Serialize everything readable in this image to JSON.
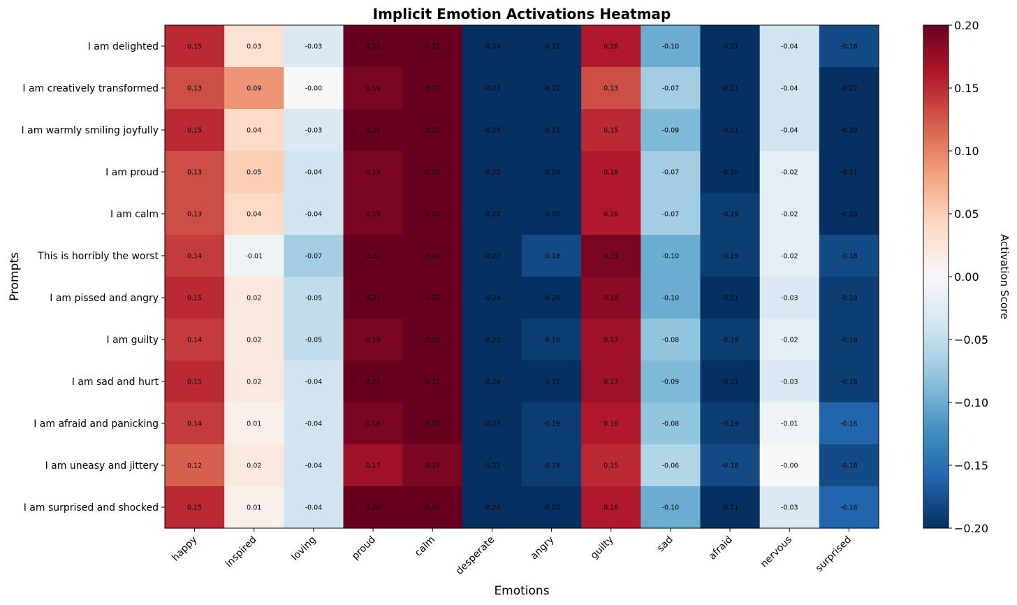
{
  "chart_data": {
    "type": "heatmap",
    "title": "Implicit Emotion Activations Heatmap",
    "xlabel": "Emotions",
    "ylabel": "Prompts",
    "x_categories": [
      "happy",
      "inspired",
      "loving",
      "proud",
      "calm",
      "desperate",
      "angry",
      "guilty",
      "sad",
      "afraid",
      "nervous",
      "surprised"
    ],
    "y_categories": [
      "I am delighted",
      "I am creatively transformed",
      "I am warmly smiling joyfully",
      "I am proud",
      "I am calm",
      "This is horribly the worst",
      "I am pissed and angry",
      "I am guilty",
      "I am sad and hurt",
      "I am afraid and panicking",
      "I am uneasy and jittery",
      "I am surprised and shocked"
    ],
    "values": [
      [
        0.15,
        0.03,
        -0.03,
        0.21,
        0.21,
        -0.24,
        -0.21,
        0.16,
        -0.1,
        -0.21,
        -0.04,
        -0.18
      ],
      [
        0.13,
        0.09,
        -0.0,
        0.19,
        0.21,
        -0.23,
        -0.22,
        0.13,
        -0.07,
        -0.21,
        -0.04,
        -0.22
      ],
      [
        0.15,
        0.04,
        -0.03,
        0.21,
        0.22,
        -0.25,
        -0.21,
        0.15,
        -0.09,
        -0.21,
        -0.04,
        -0.2
      ],
      [
        0.13,
        0.05,
        -0.04,
        0.19,
        0.2,
        -0.22,
        -0.2,
        0.16,
        -0.07,
        -0.2,
        -0.02,
        -0.21
      ],
      [
        0.13,
        0.04,
        -0.04,
        0.19,
        0.2,
        -0.22,
        -0.2,
        0.16,
        -0.07,
        -0.19,
        -0.02,
        -0.2
      ],
      [
        0.14,
        -0.01,
        -0.07,
        0.21,
        0.2,
        -0.22,
        -0.18,
        0.19,
        -0.1,
        -0.19,
        -0.02,
        -0.18
      ],
      [
        0.15,
        0.02,
        -0.05,
        0.21,
        0.21,
        -0.24,
        -0.2,
        0.18,
        -0.1,
        -0.21,
        -0.03,
        -0.19
      ],
      [
        0.14,
        0.02,
        -0.05,
        0.19,
        0.2,
        -0.22,
        -0.19,
        0.17,
        -0.08,
        -0.19,
        -0.02,
        -0.19
      ],
      [
        0.15,
        0.02,
        -0.04,
        0.21,
        0.21,
        -0.24,
        -0.21,
        0.17,
        -0.09,
        -0.21,
        -0.03,
        -0.19
      ],
      [
        0.14,
        0.01,
        -0.04,
        0.19,
        0.2,
        -0.23,
        -0.19,
        0.16,
        -0.08,
        -0.19,
        -0.01,
        -0.16
      ],
      [
        0.12,
        0.02,
        -0.04,
        0.17,
        0.19,
        -0.21,
        -0.19,
        0.15,
        -0.06,
        -0.18,
        -0.0,
        -0.18
      ],
      [
        0.15,
        0.01,
        -0.04,
        0.2,
        0.2,
        -0.24,
        -0.2,
        0.16,
        -0.1,
        -0.21,
        -0.03,
        -0.16
      ]
    ],
    "value_labels": [
      [
        "0.15",
        "0.03",
        "-0.03",
        "0.21",
        "0.21",
        "-0.24",
        "-0.21",
        "0.16",
        "-0.10",
        "-0.21",
        "-0.04",
        "-0.18"
      ],
      [
        "0.13",
        "0.09",
        "-0.00",
        "0.19",
        "0.21",
        "-0.23",
        "-0.22",
        "0.13",
        "-0.07",
        "-0.21",
        "-0.04",
        "-0.22"
      ],
      [
        "0.15",
        "0.04",
        "-0.03",
        "0.21",
        "0.22",
        "-0.25",
        "-0.21",
        "0.15",
        "-0.09",
        "-0.21",
        "-0.04",
        "-0.20"
      ],
      [
        "0.13",
        "0.05",
        "-0.04",
        "0.19",
        "0.20",
        "-0.22",
        "-0.20",
        "0.16",
        "-0.07",
        "-0.20",
        "-0.02",
        "-0.21"
      ],
      [
        "0.13",
        "0.04",
        "-0.04",
        "0.19",
        "0.20",
        "-0.22",
        "-0.20",
        "0.16",
        "-0.07",
        "-0.19",
        "-0.02",
        "-0.20"
      ],
      [
        "0.14",
        "-0.01",
        "-0.07",
        "0.21",
        "0.20",
        "-0.22",
        "-0.18",
        "0.19",
        "-0.10",
        "-0.19",
        "-0.02",
        "-0.18"
      ],
      [
        "0.15",
        "0.02",
        "-0.05",
        "0.21",
        "0.21",
        "-0.24",
        "-0.20",
        "0.18",
        "-0.10",
        "-0.21",
        "-0.03",
        "-0.19"
      ],
      [
        "0.14",
        "0.02",
        "-0.05",
        "0.19",
        "0.20",
        "-0.22",
        "-0.19",
        "0.17",
        "-0.08",
        "-0.19",
        "-0.02",
        "-0.19"
      ],
      [
        "0.15",
        "0.02",
        "-0.04",
        "0.21",
        "0.21",
        "-0.24",
        "-0.21",
        "0.17",
        "-0.09",
        "-0.21",
        "-0.03",
        "-0.19"
      ],
      [
        "0.14",
        "0.01",
        "-0.04",
        "0.19",
        "0.20",
        "-0.23",
        "-0.19",
        "0.16",
        "-0.08",
        "-0.19",
        "-0.01",
        "-0.16"
      ],
      [
        "0.12",
        "0.02",
        "-0.04",
        "0.17",
        "0.19",
        "-0.21",
        "-0.19",
        "0.15",
        "-0.06",
        "-0.18",
        "-0.00",
        "-0.18"
      ],
      [
        "0.15",
        "0.01",
        "-0.04",
        "0.20",
        "0.20",
        "-0.24",
        "-0.20",
        "0.16",
        "-0.10",
        "-0.21",
        "-0.03",
        "-0.16"
      ]
    ],
    "colorbar": {
      "label": "Activation Score",
      "range": [
        -0.2,
        0.2
      ],
      "ticks": [
        0.2,
        0.15,
        0.1,
        0.05,
        0.0,
        -0.05,
        -0.1,
        -0.15,
        -0.2
      ],
      "tick_labels": [
        "0.20",
        "0.15",
        "0.10",
        "0.05",
        "0.00",
        "−0.05",
        "−0.10",
        "−0.15",
        "−0.20"
      ]
    },
    "colormap": "RdBu_r",
    "grid": false
  }
}
